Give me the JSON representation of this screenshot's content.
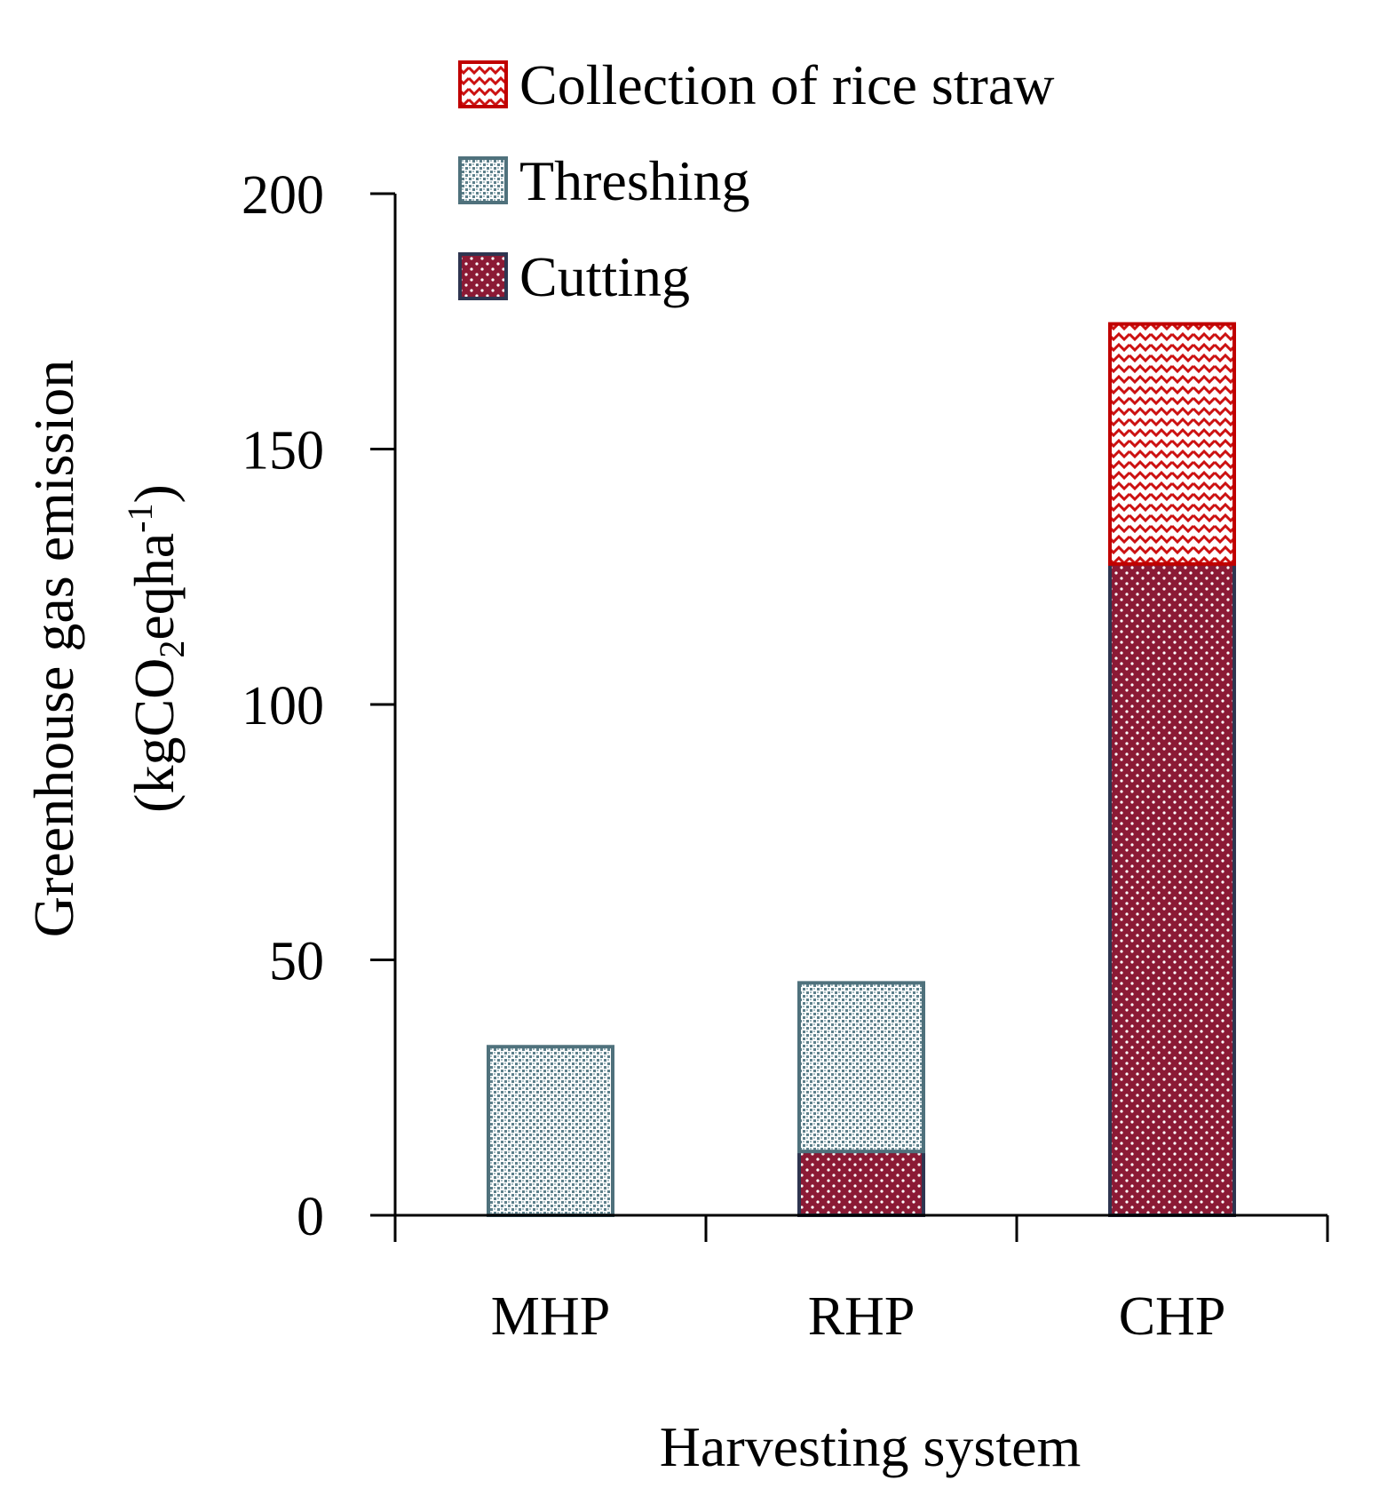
{
  "chart_data": {
    "type": "bar",
    "stacked": true,
    "categories": [
      "MHP",
      "RHP",
      "CHP"
    ],
    "series": [
      {
        "name": "Cutting",
        "values": [
          0,
          12.5,
          127.5
        ],
        "color": "#8b1a35",
        "edge": "#2e3550",
        "pattern": "dots"
      },
      {
        "name": "Threshing",
        "values": [
          33,
          33,
          0
        ],
        "color": "#5c7f8a",
        "edge": "#4f717c",
        "pattern": "checker"
      },
      {
        "name": "Collection of rice straw",
        "values": [
          0,
          0,
          47
        ],
        "color": "#cc1111",
        "edge": "#c00000",
        "pattern": "zigzag"
      }
    ],
    "legend_order": [
      "Collection of rice straw",
      "Threshing",
      "Cutting"
    ],
    "legend_position": "top-left inside plot",
    "xlabel": "Harvesting system",
    "ylabel_line1": "Greenhouse gas emission",
    "ylabel_line2_parts": [
      "(kgCO",
      "2",
      "eqha",
      "-1",
      ")"
    ],
    "ylim": [
      0,
      200
    ],
    "yticks": [
      0,
      50,
      100,
      150,
      200
    ],
    "ytick_labels": [
      "0",
      "50",
      "100",
      "150",
      "200"
    ],
    "grid": false
  }
}
